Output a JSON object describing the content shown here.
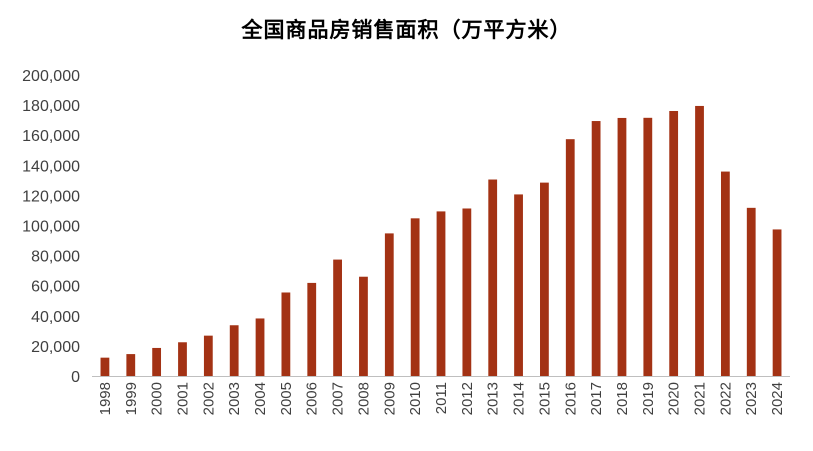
{
  "chart_data": {
    "type": "bar",
    "title": "全国商品房销售面积（万平方米）",
    "xlabel": "",
    "ylabel": "",
    "ylim": [
      0,
      200000
    ],
    "yticks": [
      0,
      20000,
      40000,
      60000,
      80000,
      100000,
      120000,
      140000,
      160000,
      180000,
      200000
    ],
    "ytick_labels": [
      "0",
      "20,000",
      "40,000",
      "60,000",
      "80,000",
      "100,000",
      "120,000",
      "140,000",
      "160,000",
      "180,000",
      "200,000"
    ],
    "grid": false,
    "legend": "none",
    "bar_color": "#A33214",
    "categories": [
      "1998",
      "1999",
      "2000",
      "2001",
      "2002",
      "2003",
      "2004",
      "2005",
      "2006",
      "2007",
      "2008",
      "2009",
      "2010",
      "2011",
      "2012",
      "2013",
      "2014",
      "2015",
      "2016",
      "2017",
      "2018",
      "2019",
      "2020",
      "2021",
      "2022",
      "2023",
      "2024"
    ],
    "values": [
      12185,
      14557,
      18637,
      22412,
      26808,
      33718,
      38232,
      55486,
      61857,
      77355,
      65970,
      94755,
      104765,
      109367,
      111304,
      130551,
      120649,
      128495,
      157349,
      169408,
      171465,
      171558,
      176086,
      179433,
      135837,
      111735,
      97385
    ]
  }
}
